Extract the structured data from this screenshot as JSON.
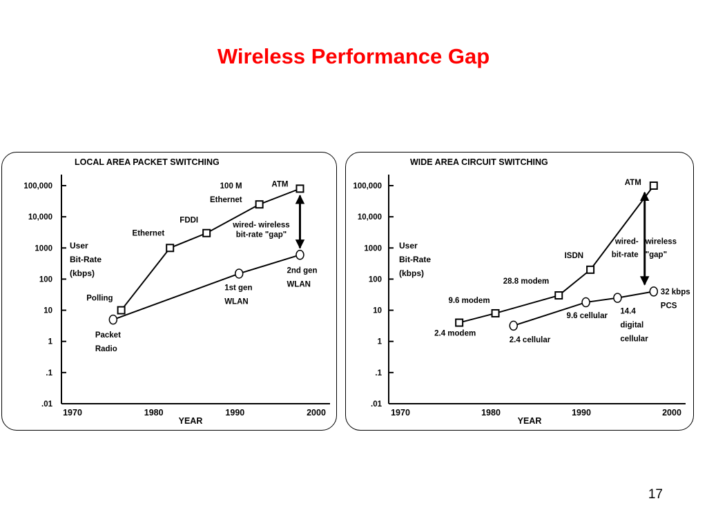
{
  "slide": {
    "title": "Wireless Performance Gap",
    "page_number": "17"
  },
  "chart_data": [
    {
      "type": "line",
      "title": "LOCAL AREA PACKET SWITCHING",
      "xlabel": "YEAR",
      "ylabel_lines": [
        "User",
        "Bit-Rate",
        "(kbps)"
      ],
      "x_scale": "linear",
      "y_scale": "log",
      "xlim": [
        1970,
        2000
      ],
      "ylim": [
        0.01,
        100000
      ],
      "x_ticks": [
        "1970",
        "1980",
        "1990",
        "2000"
      ],
      "y_ticks": [
        {
          "value": 100000,
          "label": "100,000"
        },
        {
          "value": 10000,
          "label": "10,000"
        },
        {
          "value": 1000,
          "label": "1000"
        },
        {
          "value": 100,
          "label": "100"
        },
        {
          "value": 10,
          "label": "10"
        },
        {
          "value": 1,
          "label": "1"
        },
        {
          "value": 0.1,
          "label": ".1"
        },
        {
          "value": 0.01,
          "label": ".01"
        }
      ],
      "series": [
        {
          "name": "wired",
          "marker": "square",
          "points": [
            {
              "x": 1976,
              "y": 10,
              "label_lines": [
                "Polling"
              ],
              "label_anchor": "end",
              "label_dx": -12,
              "label_dy": -14
            },
            {
              "x": 1982,
              "y": 1000,
              "label_lines": [
                "Ethernet"
              ],
              "label_anchor": "end",
              "label_dx": -8,
              "label_dy": -18
            },
            {
              "x": 1986.5,
              "y": 3000,
              "label_lines": [
                "FDDI"
              ],
              "label_anchor": "end",
              "label_dx": -12,
              "label_dy": -15
            },
            {
              "x": 1993,
              "y": 25000,
              "label_lines": [
                "100 M",
                "Ethernet"
              ],
              "label_anchor": "end",
              "label_dx": -25,
              "label_dy": -23
            },
            {
              "x": 1998,
              "y": 80000,
              "label_lines": [
                "ATM"
              ],
              "label_anchor": "end",
              "label_dx": -17,
              "label_dy": -3
            }
          ]
        },
        {
          "name": "wireless",
          "marker": "circle",
          "points": [
            {
              "x": 1975,
              "y": 5,
              "label_lines": [
                "Packet",
                "Radio"
              ],
              "label_anchor": "start",
              "label_dx": -26,
              "label_dy": 26
            },
            {
              "x": 1990.5,
              "y": 150,
              "label_lines": [
                "1st gen",
                "WLAN"
              ],
              "label_anchor": "start",
              "label_dx": -21,
              "label_dy": 24
            },
            {
              "x": 1998,
              "y": 600,
              "label_lines": [
                "2nd gen",
                "WLAN"
              ],
              "label_anchor": "start",
              "label_dx": -19,
              "label_dy": 26
            }
          ]
        }
      ],
      "gap_arrow": {
        "x": 1998,
        "y_from": 600,
        "y_to": 80000,
        "label_lines": [
          "wired- wireless",
          "bit-rate \"gap\""
        ]
      }
    },
    {
      "type": "line",
      "title": "WIDE AREA CIRCUIT SWITCHING",
      "xlabel": "YEAR",
      "ylabel_lines": [
        "User",
        "Bit-Rate",
        "(kbps)"
      ],
      "x_scale": "linear",
      "y_scale": "log",
      "xlim": [
        1970,
        2000
      ],
      "ylim": [
        0.01,
        100000
      ],
      "x_ticks": [
        "1970",
        "1980",
        "1990",
        "2000"
      ],
      "y_ticks": [
        {
          "value": 100000,
          "label": "100,000"
        },
        {
          "value": 10000,
          "label": "10,000"
        },
        {
          "value": 1000,
          "label": "1000"
        },
        {
          "value": 100,
          "label": "100"
        },
        {
          "value": 10,
          "label": "10"
        },
        {
          "value": 1,
          "label": "1"
        },
        {
          "value": 0.1,
          "label": ".1"
        },
        {
          "value": 0.01,
          "label": ".01"
        }
      ],
      "series": [
        {
          "name": "wired",
          "marker": "square",
          "points": [
            {
              "x": 1976.5,
              "y": 4,
              "label_lines": [
                "2.4 modem"
              ],
              "label_anchor": "middle",
              "label_dx": -6,
              "label_dy": 19
            },
            {
              "x": 1980.5,
              "y": 8,
              "label_lines": [
                "9.6 modem"
              ],
              "label_anchor": "end",
              "label_dx": -8,
              "label_dy": -15
            },
            {
              "x": 1987.5,
              "y": 30,
              "label_lines": [
                "28.8 modem"
              ],
              "label_anchor": "end",
              "label_dx": -14,
              "label_dy": -17
            },
            {
              "x": 1991,
              "y": 200,
              "label_lines": [
                "ISDN"
              ],
              "label_anchor": "end",
              "label_dx": -10,
              "label_dy": -17
            },
            {
              "x": 1998,
              "y": 100000,
              "label_lines": [
                "ATM"
              ],
              "label_anchor": "end",
              "label_dx": -18,
              "label_dy": -1
            }
          ]
        },
        {
          "name": "wireless",
          "marker": "circle",
          "points": [
            {
              "x": 1982.5,
              "y": 3.2,
              "label_lines": [
                "2.4 cellular"
              ],
              "label_anchor": "start",
              "label_dx": -6,
              "label_dy": 24
            },
            {
              "x": 1990.5,
              "y": 18,
              "label_lines": [
                "9.6 cellular"
              ],
              "label_anchor": "start",
              "label_dx": -28,
              "label_dy": 23
            },
            {
              "x": 1994,
              "y": 25,
              "label_lines": [
                "14.4",
                "digital",
                "cellular"
              ],
              "label_anchor": "start",
              "label_dx": 4,
              "label_dy": 23
            },
            {
              "x": 1998,
              "y": 40,
              "label_lines": [
                "32 kbps",
                "PCS"
              ],
              "label_anchor": "start",
              "label_dx": 10,
              "label_dy": 4
            }
          ]
        }
      ],
      "gap_arrow": {
        "x": 1997,
        "y_from": 40,
        "y_to": 100000,
        "label_lines": [
          "wired-",
          "bit-rate"
        ],
        "label_lines_right": [
          "wireless",
          "\"gap\""
        ]
      }
    }
  ]
}
